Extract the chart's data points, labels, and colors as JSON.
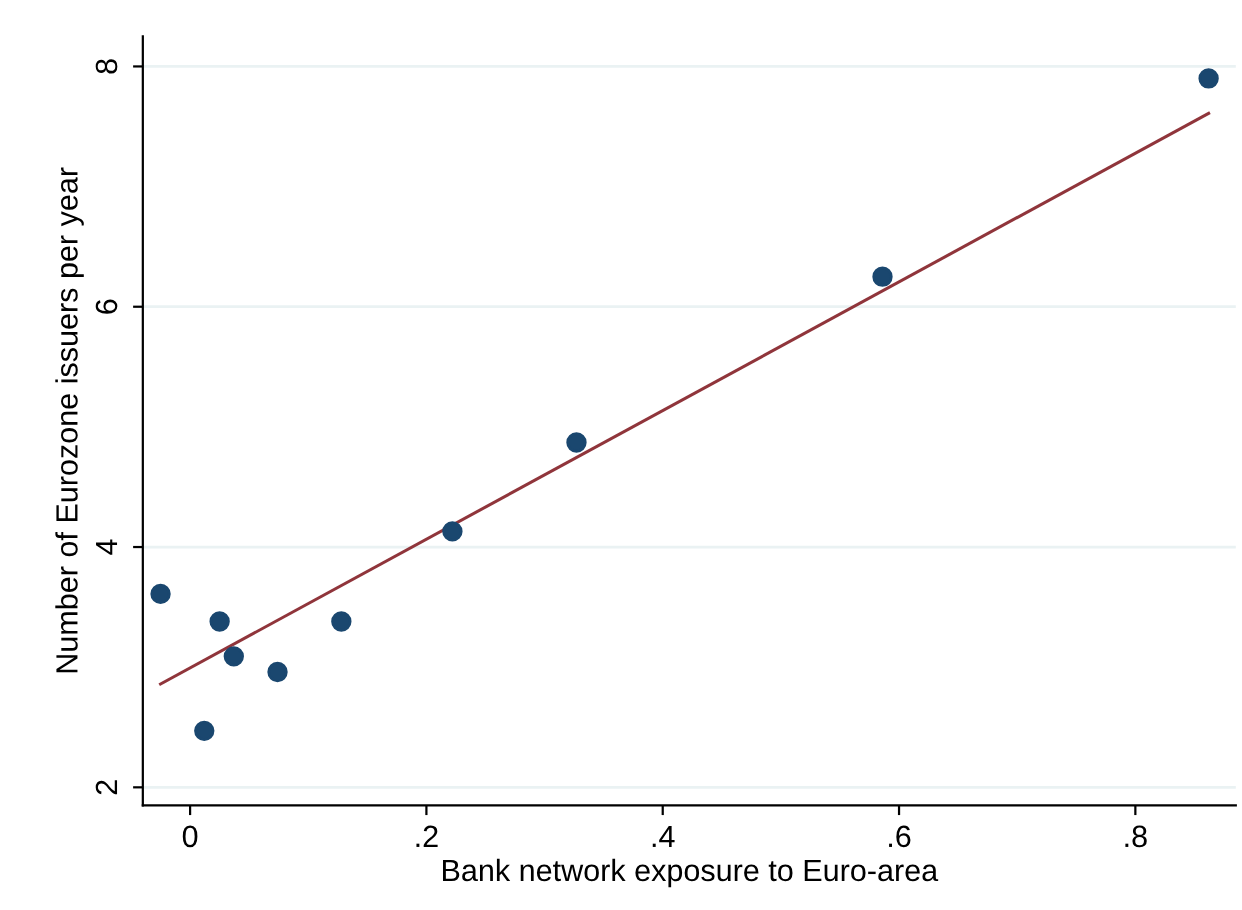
{
  "chart_data": {
    "type": "scatter",
    "xlabel": "Bank network exposure to Euro-area",
    "ylabel": "Number of Eurozone issuers per year",
    "xlim": [
      -0.04,
      0.885
    ],
    "ylim": [
      1.85,
      8.25
    ],
    "xticks": [
      0,
      {
        "value": 0.2,
        "label": ".2"
      },
      {
        "value": 0.4,
        "label": ".4"
      },
      {
        "value": 0.6,
        "label": ".6"
      },
      {
        "value": 0.8,
        "label": ".8"
      }
    ],
    "yticks": [
      2,
      4,
      6,
      8
    ],
    "grid": "y",
    "series": [
      {
        "marker": "circle",
        "color": "#1a476f",
        "x": [
          -0.025,
          0.012,
          0.025,
          0.037,
          0.074,
          0.128,
          0.222,
          0.327,
          0.586,
          0.862
        ],
        "values": [
          3.61,
          2.47,
          3.38,
          3.09,
          2.96,
          3.38,
          4.13,
          4.87,
          6.25,
          7.9
        ]
      },
      {
        "type": "line",
        "marker": "none",
        "color": "#90353b",
        "x": [
          -0.025,
          0.862
        ],
        "values": [
          2.86,
          7.61
        ]
      }
    ]
  }
}
